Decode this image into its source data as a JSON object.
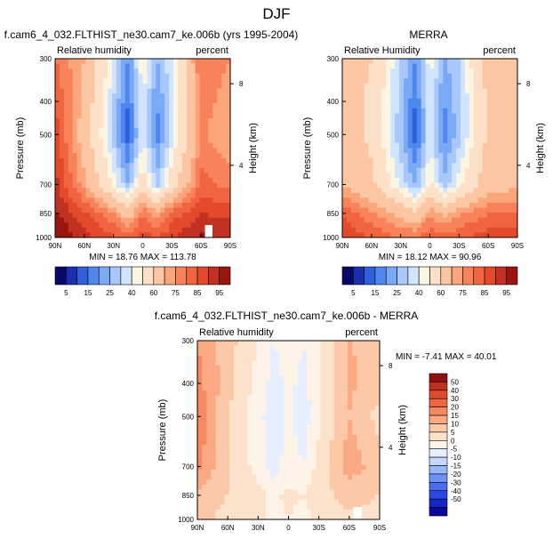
{
  "figure": {
    "season_title": "DJF",
    "colors": {
      "scale": [
        "#08086b",
        "#1a2fb0",
        "#2f5fdc",
        "#4f87ee",
        "#7aaaf5",
        "#a8c8fb",
        "#d0e4fd",
        "#fbf6e4",
        "#fde0c8",
        "#fcc6a2",
        "#fba57a",
        "#f8835a",
        "#f06440",
        "#e34a2c",
        "#c23122",
        "#9a1510"
      ],
      "diff_scale": [
        "#0a0a9a",
        "#1426c4",
        "#2a48df",
        "#4a6ef0",
        "#6e93f6",
        "#98b6fa",
        "#c5d8fd",
        "#e6efff",
        "#fdf3e6",
        "#fde2cb",
        "#fcc9a8",
        "#fba982",
        "#f8885f",
        "#f06643",
        "#df4a2e",
        "#c0301f",
        "#8f1010"
      ],
      "missing": "#ffffff"
    },
    "panels": [
      {
        "id": "model",
        "header": "f.cam6_4_032.FLTHIST_ne30.cam7_ke.006b (yrs 1995-2004)",
        "left_label": "Relative humidity",
        "right_label": "percent",
        "stats": "MIN = 18.76  MAX = 113.78"
      },
      {
        "id": "obs",
        "header": "MERRA",
        "left_label": "Relative Humidity",
        "right_label": "percent",
        "stats": "MIN = 18.12  MAX = 90.96"
      },
      {
        "id": "diff",
        "header": "f.cam6_4_032.FLTHIST_ne30.cam7_ke.006b - MERRA",
        "left_label": "Relative humidity",
        "right_label": "percent",
        "stats": "MIN = -7.41  MAX = 40.01"
      }
    ]
  },
  "chart_data": [
    {
      "type": "heatmap",
      "title": "f.cam6_4_032.FLTHIST_ne30.cam7_ke.006b (yrs 1995-2004)",
      "subtitle_left": "Relative humidity",
      "subtitle_right": "percent",
      "xlabel": "",
      "ylabel": "Pressure (mb)",
      "y2label": "Height (km)",
      "x_ticks": [
        "90N",
        "60N",
        "30N",
        "0",
        "30S",
        "60S",
        "90S"
      ],
      "y_ticks": [
        300,
        400,
        500,
        700,
        850,
        1000
      ],
      "y2_ticks": [
        8,
        4
      ],
      "y_scale": "log",
      "ylim": [
        1000,
        300
      ],
      "stats": {
        "min": 18.76,
        "max": 113.78
      },
      "colorbar_levels": [
        5,
        10,
        15,
        20,
        25,
        30,
        35,
        40,
        50,
        60,
        65,
        70,
        75,
        80,
        85,
        90,
        95
      ],
      "colorbar_labels": [
        "5",
        "15",
        "25",
        "40",
        "60",
        "75",
        "85",
        "95"
      ],
      "lat": [
        90,
        60,
        30,
        15,
        0,
        -15,
        -30,
        -60,
        -90
      ],
      "plev": [
        300,
        400,
        500,
        700,
        850,
        1000
      ],
      "values": [
        [
          70,
          60,
          35,
          20,
          40,
          25,
          35,
          70,
          65
        ],
        [
          75,
          58,
          30,
          15,
          35,
          20,
          32,
          68,
          62
        ],
        [
          78,
          55,
          28,
          12,
          35,
          18,
          32,
          66,
          60
        ],
        [
          82,
          62,
          38,
          25,
          45,
          28,
          45,
          72,
          68
        ],
        [
          86,
          76,
          66,
          55,
          70,
          62,
          72,
          80,
          78
        ],
        [
          92,
          82,
          76,
          72,
          78,
          74,
          80,
          86,
          85
        ]
      ]
    },
    {
      "type": "heatmap",
      "title": "MERRA",
      "subtitle_left": "Relative Humidity",
      "subtitle_right": "percent",
      "xlabel": "",
      "ylabel": "Pressure (mb)",
      "y2label": "Height (km)",
      "x_ticks": [
        "90N",
        "60N",
        "30N",
        "0",
        "30S",
        "60S",
        "90S"
      ],
      "y_ticks": [
        300,
        400,
        500,
        700,
        850,
        1000
      ],
      "y2_ticks": [
        8,
        4
      ],
      "y_scale": "log",
      "ylim": [
        1000,
        300
      ],
      "stats": {
        "min": 18.12,
        "max": 90.96
      },
      "colorbar_levels": [
        5,
        10,
        15,
        20,
        25,
        30,
        35,
        40,
        50,
        60,
        65,
        70,
        75,
        80,
        85,
        90,
        95
      ],
      "colorbar_labels": [
        "5",
        "15",
        "25",
        "40",
        "60",
        "75",
        "85",
        "95"
      ],
      "lat": [
        90,
        60,
        30,
        15,
        0,
        -15,
        -30,
        -60,
        -90
      ],
      "plev": [
        300,
        400,
        500,
        700,
        850,
        1000
      ],
      "values": [
        [
          55,
          50,
          30,
          20,
          38,
          24,
          30,
          55,
          55
        ],
        [
          55,
          48,
          28,
          15,
          34,
          20,
          28,
          52,
          55
        ],
        [
          55,
          48,
          26,
          12,
          33,
          18,
          28,
          52,
          55
        ],
        [
          60,
          52,
          34,
          24,
          42,
          26,
          38,
          56,
          58
        ],
        [
          74,
          66,
          58,
          52,
          64,
          58,
          64,
          70,
          70
        ],
        [
          80,
          74,
          70,
          70,
          74,
          72,
          74,
          78,
          78
        ]
      ]
    },
    {
      "type": "heatmap",
      "title": "f.cam6_4_032.FLTHIST_ne30.cam7_ke.006b - MERRA",
      "subtitle_left": "Relative humidity",
      "subtitle_right": "percent",
      "xlabel": "",
      "ylabel": "Pressure (mb)",
      "y2label": "Height (km)",
      "x_ticks": [
        "90N",
        "60N",
        "30N",
        "0",
        "30S",
        "60S",
        "90S"
      ],
      "y_ticks": [
        300,
        400,
        500,
        700,
        850,
        1000
      ],
      "y2_ticks": [
        8,
        4
      ],
      "y_scale": "log",
      "ylim": [
        1000,
        300
      ],
      "stats": {
        "min": -7.41,
        "max": 40.01
      },
      "colorbar_levels": [
        -50,
        -40,
        -30,
        -20,
        -15,
        -10,
        -5,
        0,
        5,
        10,
        15,
        20,
        30,
        40,
        50
      ],
      "colorbar_labels": [
        "50",
        "40",
        "30",
        "20",
        "15",
        "10",
        "5",
        "0",
        "-5",
        "-10",
        "-15",
        "-20",
        "-30",
        "-40",
        "-50"
      ],
      "lat": [
        90,
        60,
        30,
        15,
        0,
        -15,
        -30,
        -60,
        -90
      ],
      "plev": [
        300,
        400,
        500,
        700,
        850,
        1000
      ],
      "values": [
        [
          20,
          12,
          5,
          0,
          2,
          0,
          5,
          15,
          14
        ],
        [
          22,
          12,
          3,
          -2,
          1,
          -1,
          4,
          16,
          12
        ],
        [
          24,
          10,
          2,
          -4,
          1,
          -3,
          4,
          15,
          8
        ],
        [
          22,
          10,
          3,
          -3,
          3,
          0,
          7,
          18,
          12
        ],
        [
          14,
          10,
          7,
          4,
          6,
          5,
          8,
          12,
          10
        ],
        [
          12,
          8,
          6,
          3,
          5,
          3,
          6,
          9,
          8
        ]
      ]
    }
  ]
}
